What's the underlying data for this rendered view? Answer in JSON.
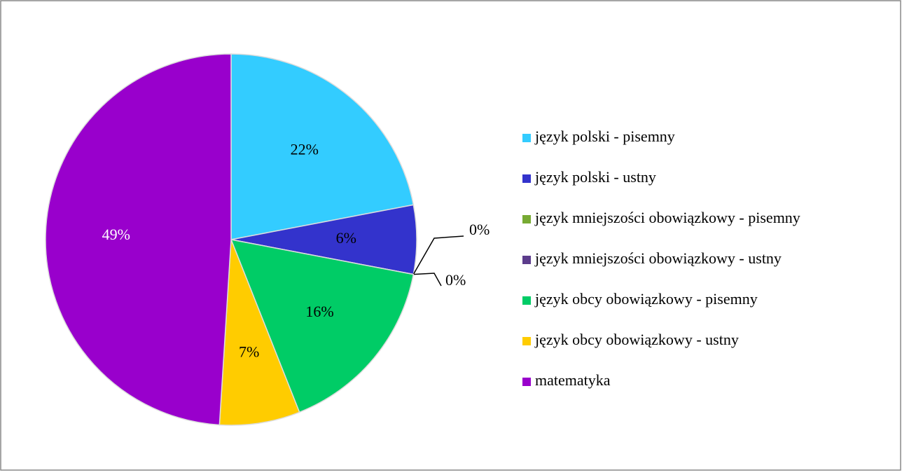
{
  "chart_data": {
    "type": "pie",
    "categories": [
      "język polski - pisemny",
      "język polski - ustny",
      "język mniejszości obowiązkowy - pisemny",
      "język mniejszości obowiązkowy - ustny",
      "język obcy obowiązkowy - pisemny",
      "język obcy obowiązkowy - ustny",
      "matematyka"
    ],
    "values": [
      22,
      6,
      0,
      0,
      16,
      7,
      49
    ],
    "value_labels": [
      "22%",
      "6%",
      "0%",
      "0%",
      "16%",
      "7%",
      "49%"
    ],
    "colors": [
      "#33ccff",
      "#3333cc",
      "#77aa33",
      "#5c3c8c",
      "#00cc66",
      "#ffcc00",
      "#9900cc"
    ],
    "legend": "right"
  }
}
